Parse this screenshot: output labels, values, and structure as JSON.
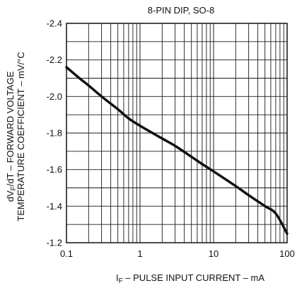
{
  "chart_data": {
    "type": "line",
    "title": "8-PIN DIP, SO-8",
    "xlabel": {
      "prefix": "I",
      "sub": "F",
      "rest": " – PULSE INPUT CURRENT – mA"
    },
    "ylabel": {
      "line1_prefix": "dV",
      "line1_sub": "F",
      "line1_rest": "/dT – FORWARD VOLTAGE",
      "line2": "TEMPERATURE COEFFICIENT – mV/°C"
    },
    "x_scale": "log",
    "xlim": [
      0.1,
      100
    ],
    "ylim": [
      -1.2,
      -2.4
    ],
    "y_axis_inverted": true,
    "x_ticks": [
      0.1,
      1,
      10,
      100
    ],
    "x_tick_labels": [
      "0.1",
      "1",
      "10",
      "100"
    ],
    "y_ticks": [
      -2.4,
      -2.2,
      -2.0,
      -1.8,
      -1.6,
      -1.4,
      -1.2
    ],
    "y_tick_labels": [
      "-2.4",
      "-2.2",
      "-2.0",
      "-1.8",
      "-1.6",
      "-1.4",
      "-1.2"
    ],
    "grid": true,
    "series": [
      {
        "color": "#111111",
        "x": [
          0.1,
          0.15,
          0.2,
          0.3,
          0.5,
          0.7,
          1,
          2,
          3,
          5,
          7,
          10,
          20,
          30,
          50,
          70,
          100
        ],
        "y": [
          -2.16,
          -2.1,
          -2.06,
          -2.0,
          -1.93,
          -1.88,
          -1.84,
          -1.77,
          -1.73,
          -1.67,
          -1.63,
          -1.59,
          -1.51,
          -1.46,
          -1.4,
          -1.36,
          -1.25
        ]
      }
    ]
  }
}
